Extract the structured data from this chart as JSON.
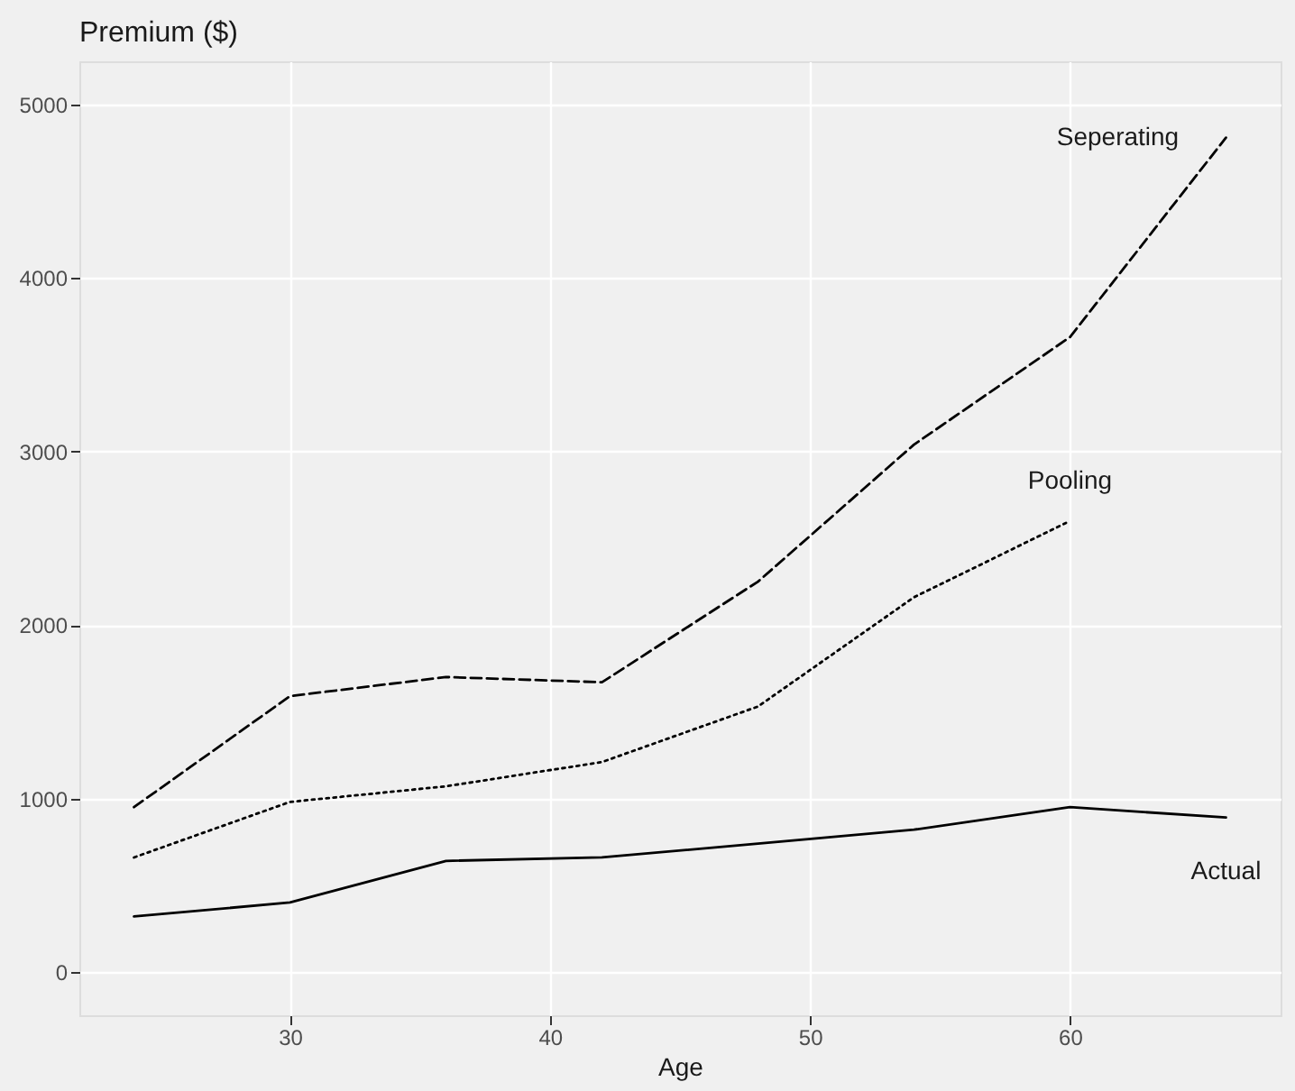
{
  "chart_data": {
    "type": "line",
    "title": "Premium ($)",
    "xlabel": "Age",
    "x": [
      24,
      30,
      36,
      42,
      48,
      54,
      60,
      66
    ],
    "series": [
      {
        "name": "Seperating",
        "color": "#000000",
        "line_style": "dashed",
        "values": [
          950,
          1590,
          1700,
          1670,
          2250,
          3040,
          3660,
          4810
        ]
      },
      {
        "name": "Pooling",
        "color": "#000000",
        "line_style": "dotted",
        "values": [
          660,
          980,
          1070,
          1210,
          1530,
          2160,
          2600,
          null
        ]
      },
      {
        "name": "Actual",
        "color": "#000000",
        "line_style": "solid",
        "values": [
          320,
          400,
          640,
          660,
          740,
          820,
          950,
          890
        ]
      }
    ],
    "xlim": [
      21.9,
      68.1
    ],
    "ylim": [
      -250,
      5250
    ],
    "xticks": [
      30,
      40,
      50,
      60
    ],
    "yticks": [
      0,
      1000,
      2000,
      3000,
      4000,
      5000
    ],
    "grid": true,
    "legend": false,
    "marker": "none"
  }
}
